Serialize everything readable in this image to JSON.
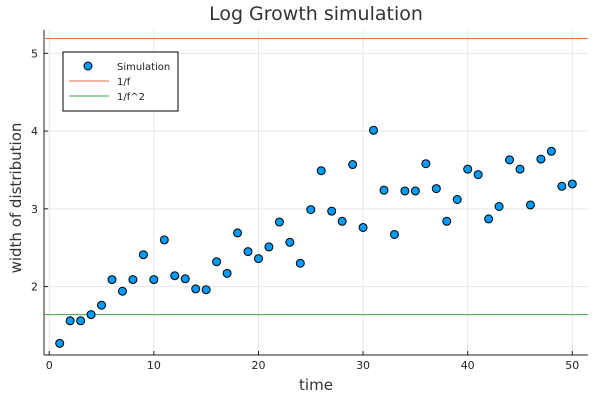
{
  "chart_data": {
    "type": "scatter",
    "title": "Log Growth simulation",
    "xlabel": "time",
    "ylabel": "width of distribution",
    "xlim": [
      -0.5,
      51.5
    ],
    "ylim": [
      1.12,
      5.3
    ],
    "xticks": [
      0,
      10,
      20,
      30,
      40,
      50
    ],
    "yticks": [
      2,
      3,
      4,
      5
    ],
    "grid": true,
    "legend_position": "top-left",
    "series": [
      {
        "name": "Simulation",
        "kind": "scatter",
        "color": "#009AF9",
        "x": [
          1,
          2,
          3,
          4,
          5,
          6,
          7,
          8,
          9,
          10,
          11,
          12,
          13,
          14,
          15,
          16,
          17,
          18,
          19,
          20,
          21,
          22,
          23,
          24,
          25,
          26,
          27,
          28,
          29,
          30,
          31,
          32,
          33,
          34,
          35,
          36,
          37,
          38,
          39,
          40,
          41,
          42,
          43,
          44,
          45,
          46,
          47,
          48,
          49,
          50
        ],
        "y": [
          1.27,
          1.56,
          1.56,
          1.64,
          1.76,
          2.09,
          1.94,
          2.09,
          2.41,
          2.09,
          2.6,
          2.14,
          2.1,
          1.97,
          1.96,
          2.32,
          2.17,
          2.69,
          2.45,
          2.36,
          2.51,
          2.83,
          2.57,
          2.3,
          2.99,
          3.49,
          2.97,
          2.84,
          3.57,
          2.76,
          4.01,
          3.24,
          2.67,
          3.23,
          3.23,
          3.58,
          3.26,
          2.84,
          3.12,
          3.51,
          3.44,
          2.87,
          3.03,
          3.63,
          3.51,
          3.05,
          3.64,
          3.74,
          3.29,
          3.32
        ]
      },
      {
        "name": "1/f",
        "kind": "hline",
        "color": "#E26F46",
        "y": 5.19
      },
      {
        "name": "1/f^2",
        "kind": "hline",
        "color": "#3DA44D",
        "y": 1.64
      }
    ]
  }
}
